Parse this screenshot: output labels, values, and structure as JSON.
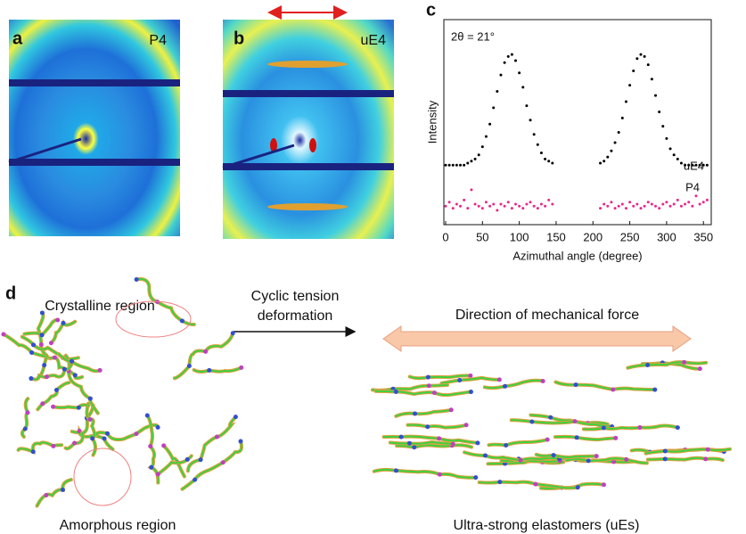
{
  "panels": {
    "a": {
      "label": "a",
      "sample": "P4"
    },
    "b": {
      "label": "b",
      "sample": "uE4"
    },
    "c": {
      "label": "c"
    },
    "d": {
      "label": "d"
    }
  },
  "chart_data": {
    "type": "scatter",
    "title": "2θ = 21°",
    "x_label": "Azimuthal angle (degree)",
    "y_label": "Intensity",
    "x": [
      0,
      5,
      10,
      15,
      20,
      25,
      30,
      35,
      40,
      45,
      50,
      55,
      60,
      65,
      70,
      75,
      80,
      85,
      90,
      95,
      100,
      105,
      110,
      115,
      120,
      125,
      130,
      135,
      140,
      145,
      150,
      155,
      160,
      165,
      170,
      175,
      180,
      185,
      190,
      195,
      200,
      205,
      210,
      215,
      220,
      225,
      230,
      235,
      240,
      245,
      250,
      255,
      260,
      265,
      270,
      275,
      280,
      285,
      290,
      295,
      300,
      305,
      310,
      315,
      320,
      325,
      330,
      335,
      340,
      345,
      350,
      355
    ],
    "xlim": [
      0,
      360
    ],
    "xticks": [
      0,
      50,
      100,
      150,
      200,
      250,
      300,
      350
    ],
    "ylim": [
      0,
      1
    ],
    "series": [
      {
        "name": "uE4",
        "color": "#000000",
        "values": [
          0.29,
          0.29,
          0.29,
          0.29,
          0.29,
          0.29,
          0.3,
          0.31,
          0.32,
          0.34,
          0.38,
          0.43,
          0.49,
          0.57,
          0.65,
          0.73,
          0.79,
          0.82,
          0.83,
          0.8,
          0.74,
          0.67,
          0.58,
          0.51,
          0.44,
          0.39,
          0.35,
          0.32,
          0.31,
          0.3,
          null,
          null,
          null,
          null,
          null,
          null,
          null,
          null,
          null,
          null,
          null,
          null,
          0.3,
          0.31,
          0.33,
          0.36,
          0.4,
          0.45,
          0.52,
          0.6,
          0.68,
          0.75,
          0.81,
          0.83,
          0.82,
          0.78,
          0.71,
          0.63,
          0.55,
          0.48,
          0.42,
          0.37,
          0.34,
          0.32,
          0.3,
          0.29,
          0.29,
          0.29,
          0.29,
          0.29,
          0.29,
          0.29
        ]
      },
      {
        "name": "P4",
        "color": "#e8288a",
        "values": [
          0.09,
          0.11,
          0.08,
          0.1,
          0.09,
          0.12,
          0.08,
          0.17,
          0.1,
          0.09,
          0.08,
          0.11,
          0.09,
          0.1,
          0.07,
          0.1,
          0.09,
          0.11,
          0.08,
          0.1,
          0.09,
          0.08,
          0.1,
          0.11,
          0.09,
          0.08,
          0.1,
          0.09,
          0.12,
          0.1,
          null,
          null,
          null,
          null,
          null,
          null,
          null,
          null,
          null,
          null,
          null,
          null,
          0.08,
          0.1,
          0.09,
          0.11,
          0.08,
          0.09,
          0.1,
          0.08,
          0.11,
          0.09,
          0.1,
          0.08,
          0.09,
          0.11,
          0.1,
          0.09,
          0.08,
          0.1,
          0.11,
          0.09,
          0.1,
          0.12,
          0.09,
          0.1,
          0.11,
          0.09,
          0.14,
          0.1,
          0.11,
          0.12
        ]
      }
    ]
  },
  "diagram": {
    "crystalline": "Crystalline region",
    "amorphous": "Amorphous region",
    "process": [
      "Cyclic tension",
      "deformation"
    ],
    "force": "Direction of mechanical force",
    "result": "Ultra-strong elastomers (uEs)"
  }
}
